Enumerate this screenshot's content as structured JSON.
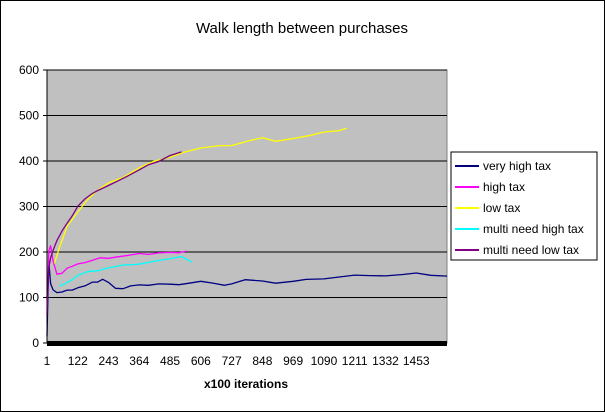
{
  "chart_data": {
    "type": "line",
    "title": "Walk length between purchases",
    "xlabel": "x100 iterations",
    "ylabel": "",
    "ylim": [
      0,
      600
    ],
    "yticks": [
      0,
      100,
      200,
      300,
      400,
      500,
      600
    ],
    "xlim": [
      1,
      1574
    ],
    "xticks": [
      1,
      122,
      243,
      364,
      485,
      606,
      727,
      848,
      969,
      1090,
      1211,
      1332,
      1453
    ],
    "grid": "horizontal",
    "plot_background": "#c0c0c0",
    "legend_position": "right",
    "series": [
      {
        "name": "very high tax",
        "color": "#000080",
        "x": [
          1,
          8,
          15,
          25,
          40,
          60,
          80,
          100,
          122,
          150,
          180,
          200,
          220,
          243,
          270,
          300,
          330,
          364,
          400,
          440,
          485,
          520,
          560,
          606,
          650,
          700,
          727,
          780,
          848,
          900,
          969,
          1020,
          1090,
          1150,
          1211,
          1270,
          1332,
          1400,
          1453,
          1510,
          1574
        ],
        "y": [
          15,
          180,
          130,
          115,
          112,
          112,
          115,
          118,
          122,
          125,
          132,
          135,
          140,
          132,
          122,
          120,
          125,
          126,
          128,
          130,
          128,
          130,
          132,
          135,
          130,
          128,
          130,
          138,
          138,
          132,
          135,
          138,
          142,
          145,
          148,
          150,
          148,
          150,
          152,
          150,
          147
        ]
      },
      {
        "name": "high tax",
        "color": "#ff00ff",
        "x": [
          1,
          8,
          15,
          25,
          40,
          60,
          80,
          100,
          122,
          150,
          180,
          210,
          243,
          280,
          320,
          364,
          400,
          440,
          485,
          520,
          550
        ],
        "y": [
          60,
          200,
          215,
          180,
          150,
          155,
          165,
          168,
          172,
          178,
          182,
          186,
          188,
          190,
          192,
          195,
          196,
          198,
          198,
          200,
          202
        ]
      },
      {
        "name": "low tax",
        "color": "#ffff00",
        "x": [
          30,
          50,
          80,
          122,
          160,
          200,
          243,
          300,
          364,
          420,
          485,
          540,
          606,
          680,
          727,
          800,
          848,
          900,
          969,
          1030,
          1090,
          1150,
          1180
        ],
        "y": [
          175,
          210,
          255,
          290,
          315,
          335,
          350,
          365,
          385,
          398,
          410,
          420,
          428,
          432,
          435,
          445,
          450,
          445,
          450,
          455,
          462,
          468,
          472
        ]
      },
      {
        "name": "multi need high tax",
        "color": "#00ffff",
        "x": [
          50,
          70,
          100,
          122,
          160,
          200,
          243,
          300,
          364,
          420,
          485,
          530,
          570
        ],
        "y": [
          125,
          132,
          140,
          148,
          155,
          160,
          165,
          170,
          175,
          180,
          185,
          188,
          178
        ]
      },
      {
        "name": "multi need low tax",
        "color": "#800080",
        "x": [
          1,
          8,
          15,
          25,
          40,
          60,
          80,
          100,
          122,
          150,
          180,
          200,
          243,
          280,
          320,
          364,
          400,
          440,
          485,
          530
        ],
        "y": [
          100,
          165,
          185,
          205,
          225,
          245,
          265,
          280,
          300,
          315,
          330,
          335,
          345,
          358,
          368,
          380,
          390,
          400,
          412,
          420
        ]
      }
    ]
  }
}
